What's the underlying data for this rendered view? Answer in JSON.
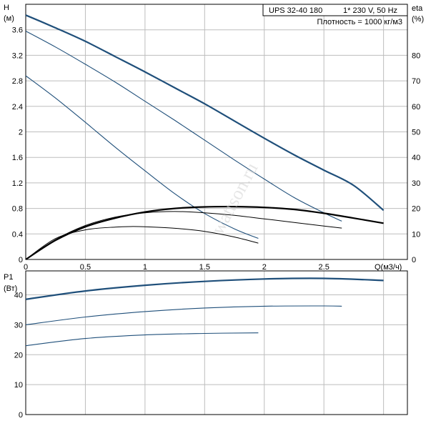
{
  "info_box": {
    "model": "UPS 32-40 180",
    "supply": "1* 230 V, 50 Hz",
    "density": "Плотность = 1000 кг/м3"
  },
  "watermark": "wattson.ru",
  "colors": {
    "pump": "#1f4f7a",
    "efficiency": "#000000",
    "grid": "#bdbdbd",
    "axis": "#000000"
  },
  "chart_data": [
    {
      "type": "line",
      "panel": "H-Q / eta",
      "xlabel": "Q(м3/ч)",
      "ylabel": "H",
      "ylabel_unit": "(м)",
      "y2label": "eta",
      "y2label_unit": "(%)",
      "xlim": [
        0,
        3.2
      ],
      "ylim": [
        0,
        4.0
      ],
      "y2lim": [
        0,
        100
      ],
      "x_ticks": [
        "0",
        "0.5",
        "1",
        "1.5",
        "2",
        "2.5"
      ],
      "y_ticks": [
        "0",
        "0.4",
        "0.8",
        "1.2",
        "1.6",
        "2",
        "2.4",
        "2.8",
        "3.2",
        "3.6"
      ],
      "y2_ticks": [
        "0",
        "10",
        "20",
        "30",
        "40",
        "50",
        "60",
        "70",
        "80"
      ],
      "grid": true,
      "series": [
        {
          "axis": "left",
          "style": "pump-bold",
          "x": [
            0,
            0.25,
            0.5,
            0.75,
            1.0,
            1.25,
            1.5,
            1.75,
            2.0,
            2.25,
            2.5,
            2.75,
            3.0
          ],
          "y": [
            3.83,
            3.63,
            3.42,
            3.18,
            2.94,
            2.69,
            2.44,
            2.17,
            1.9,
            1.64,
            1.4,
            1.16,
            0.77
          ]
        },
        {
          "axis": "left",
          "style": "pump",
          "x": [
            0,
            0.25,
            0.5,
            0.75,
            1.0,
            1.25,
            1.5,
            1.75,
            2.0,
            2.25,
            2.5,
            2.65
          ],
          "y": [
            3.58,
            3.33,
            3.06,
            2.78,
            2.48,
            2.18,
            1.87,
            1.56,
            1.26,
            0.97,
            0.73,
            0.6
          ]
        },
        {
          "axis": "left",
          "style": "pump",
          "x": [
            0,
            0.25,
            0.5,
            0.75,
            1.0,
            1.25,
            1.5,
            1.75,
            1.95
          ],
          "y": [
            2.88,
            2.53,
            2.15,
            1.76,
            1.39,
            1.03,
            0.72,
            0.48,
            0.33
          ]
        },
        {
          "axis": "right",
          "style": "eta-bold",
          "x": [
            0,
            0.25,
            0.5,
            0.75,
            1.0,
            1.25,
            1.5,
            1.75,
            2.0,
            2.25,
            2.5,
            2.75,
            3.0
          ],
          "y": [
            0,
            7.5,
            12.8,
            16.2,
            18.6,
            20.0,
            20.6,
            20.7,
            20.4,
            19.6,
            18.1,
            16.2,
            14.2
          ]
        },
        {
          "axis": "right",
          "style": "eta",
          "x": [
            0,
            0.25,
            0.5,
            0.75,
            1.0,
            1.25,
            1.5,
            1.75,
            2.0,
            2.25,
            2.5,
            2.65
          ],
          "y": [
            0,
            7.8,
            13.3,
            16.6,
            18.3,
            18.8,
            18.3,
            17.3,
            15.9,
            14.5,
            13.1,
            12.3
          ]
        },
        {
          "axis": "right",
          "style": "eta",
          "x": [
            0,
            0.25,
            0.5,
            0.75,
            0.9,
            1.0,
            1.25,
            1.5,
            1.75,
            1.95
          ],
          "y": [
            0,
            8.2,
            11.6,
            12.7,
            12.9,
            12.8,
            12.2,
            11.0,
            8.8,
            6.4
          ]
        }
      ]
    },
    {
      "type": "line",
      "panel": "P1-Q",
      "ylabel": "P1",
      "ylabel_unit": "(Вт)",
      "xlim": [
        0,
        3.2
      ],
      "ylim": [
        0,
        48
      ],
      "y_ticks": [
        "0",
        "10",
        "20",
        "30",
        "40"
      ],
      "grid": true,
      "series": [
        {
          "style": "pump-bold",
          "x": [
            0,
            0.5,
            1.0,
            1.5,
            2.0,
            2.5,
            3.0
          ],
          "y": [
            38.5,
            41.3,
            43.2,
            44.5,
            45.3,
            45.5,
            44.8
          ]
        },
        {
          "style": "pump",
          "x": [
            0,
            0.5,
            1.0,
            1.5,
            2.0,
            2.5,
            2.65
          ],
          "y": [
            30.0,
            32.6,
            34.4,
            35.6,
            36.2,
            36.3,
            36.2
          ]
        },
        {
          "style": "pump",
          "x": [
            0,
            0.5,
            1.0,
            1.5,
            1.95
          ],
          "y": [
            23.0,
            25.4,
            26.6,
            27.1,
            27.3
          ]
        }
      ]
    }
  ]
}
